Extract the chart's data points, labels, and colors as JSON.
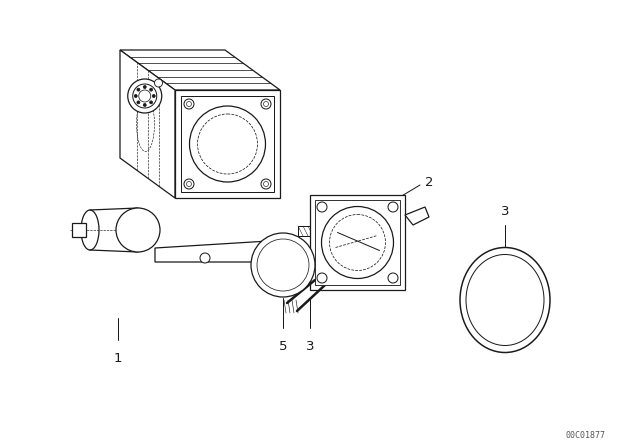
{
  "background_color": "#ffffff",
  "line_color": "#1a1a1a",
  "diagram_id": "00C01877",
  "fig_width": 6.4,
  "fig_height": 4.48,
  "dpi": 100,
  "title_color": "#333333"
}
